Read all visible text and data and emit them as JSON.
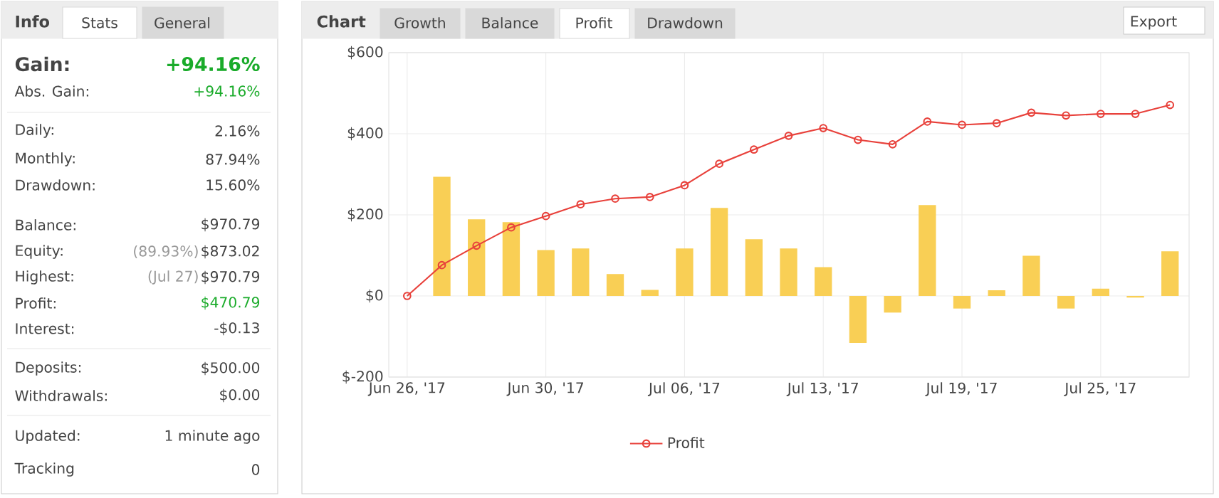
{
  "chart_data": [
    {
      "type": "other",
      "title": "Info",
      "annotations": [
        "Stats",
        "General",
        "Gain:",
        "+94.16%",
        "Abs. Gain:",
        "+94.16%",
        "Daily:",
        "2.16%",
        "Monthly:",
        "87.94%",
        "Drawdown:",
        "15.60%",
        "Balance:",
        "$970.79",
        "Equity:",
        "(89.93%)",
        "$873.02",
        "Highest:",
        "(Jul 27)",
        "$970.79",
        "Profit:",
        "$470.79",
        "Interest:",
        "-$0.13",
        "Deposits:",
        "$500.00",
        "Withdrawals:",
        "$0.00",
        "Updated:",
        "1 minute ago",
        "Tracking",
        "0"
      ]
    },
    {
      "type": "bar",
      "title": "Chart",
      "annotations": [
        "Growth",
        "Balance",
        "Profit",
        "Drawdown",
        "Export"
      ],
      "categories": [
        "Jun 26, '17",
        null,
        null,
        null,
        "Jun 30, '17",
        null,
        null,
        null,
        "Jul 06, '17",
        null,
        null,
        null,
        "Jul 13, '17",
        null,
        null,
        null,
        "Jul 19, '17",
        null,
        null,
        null,
        "Jul 25, '17",
        null,
        null
      ],
      "series": [
        {
          "type": "bar",
          "color": "#f9cf55",
          "values": [
            null,
            294,
            189,
            182,
            113,
            117,
            54,
            15,
            117,
            217,
            140,
            117,
            71,
            -116,
            -41,
            224,
            -31,
            14,
            99,
            -31,
            18,
            -4,
            110
          ]
        },
        {
          "type": "line",
          "name": "Profit",
          "color": "#e8413b",
          "values": [
            0,
            76,
            124,
            169,
            197,
            226,
            240,
            244,
            273,
            326,
            361,
            395,
            414,
            385,
            374,
            430,
            422,
            426,
            452,
            445,
            449,
            449,
            471
          ]
        }
      ],
      "ylim": [
        -200,
        600
      ],
      "yticks": [
        {
          "value": -200,
          "label": "$-200"
        },
        {
          "value": 0,
          "label": "$0"
        },
        {
          "value": 200,
          "label": "$200"
        },
        {
          "value": 400,
          "label": "$400"
        },
        {
          "value": 600,
          "label": "$600"
        }
      ],
      "grid": true,
      "legend": "bottom",
      "marker": "circle"
    }
  ]
}
